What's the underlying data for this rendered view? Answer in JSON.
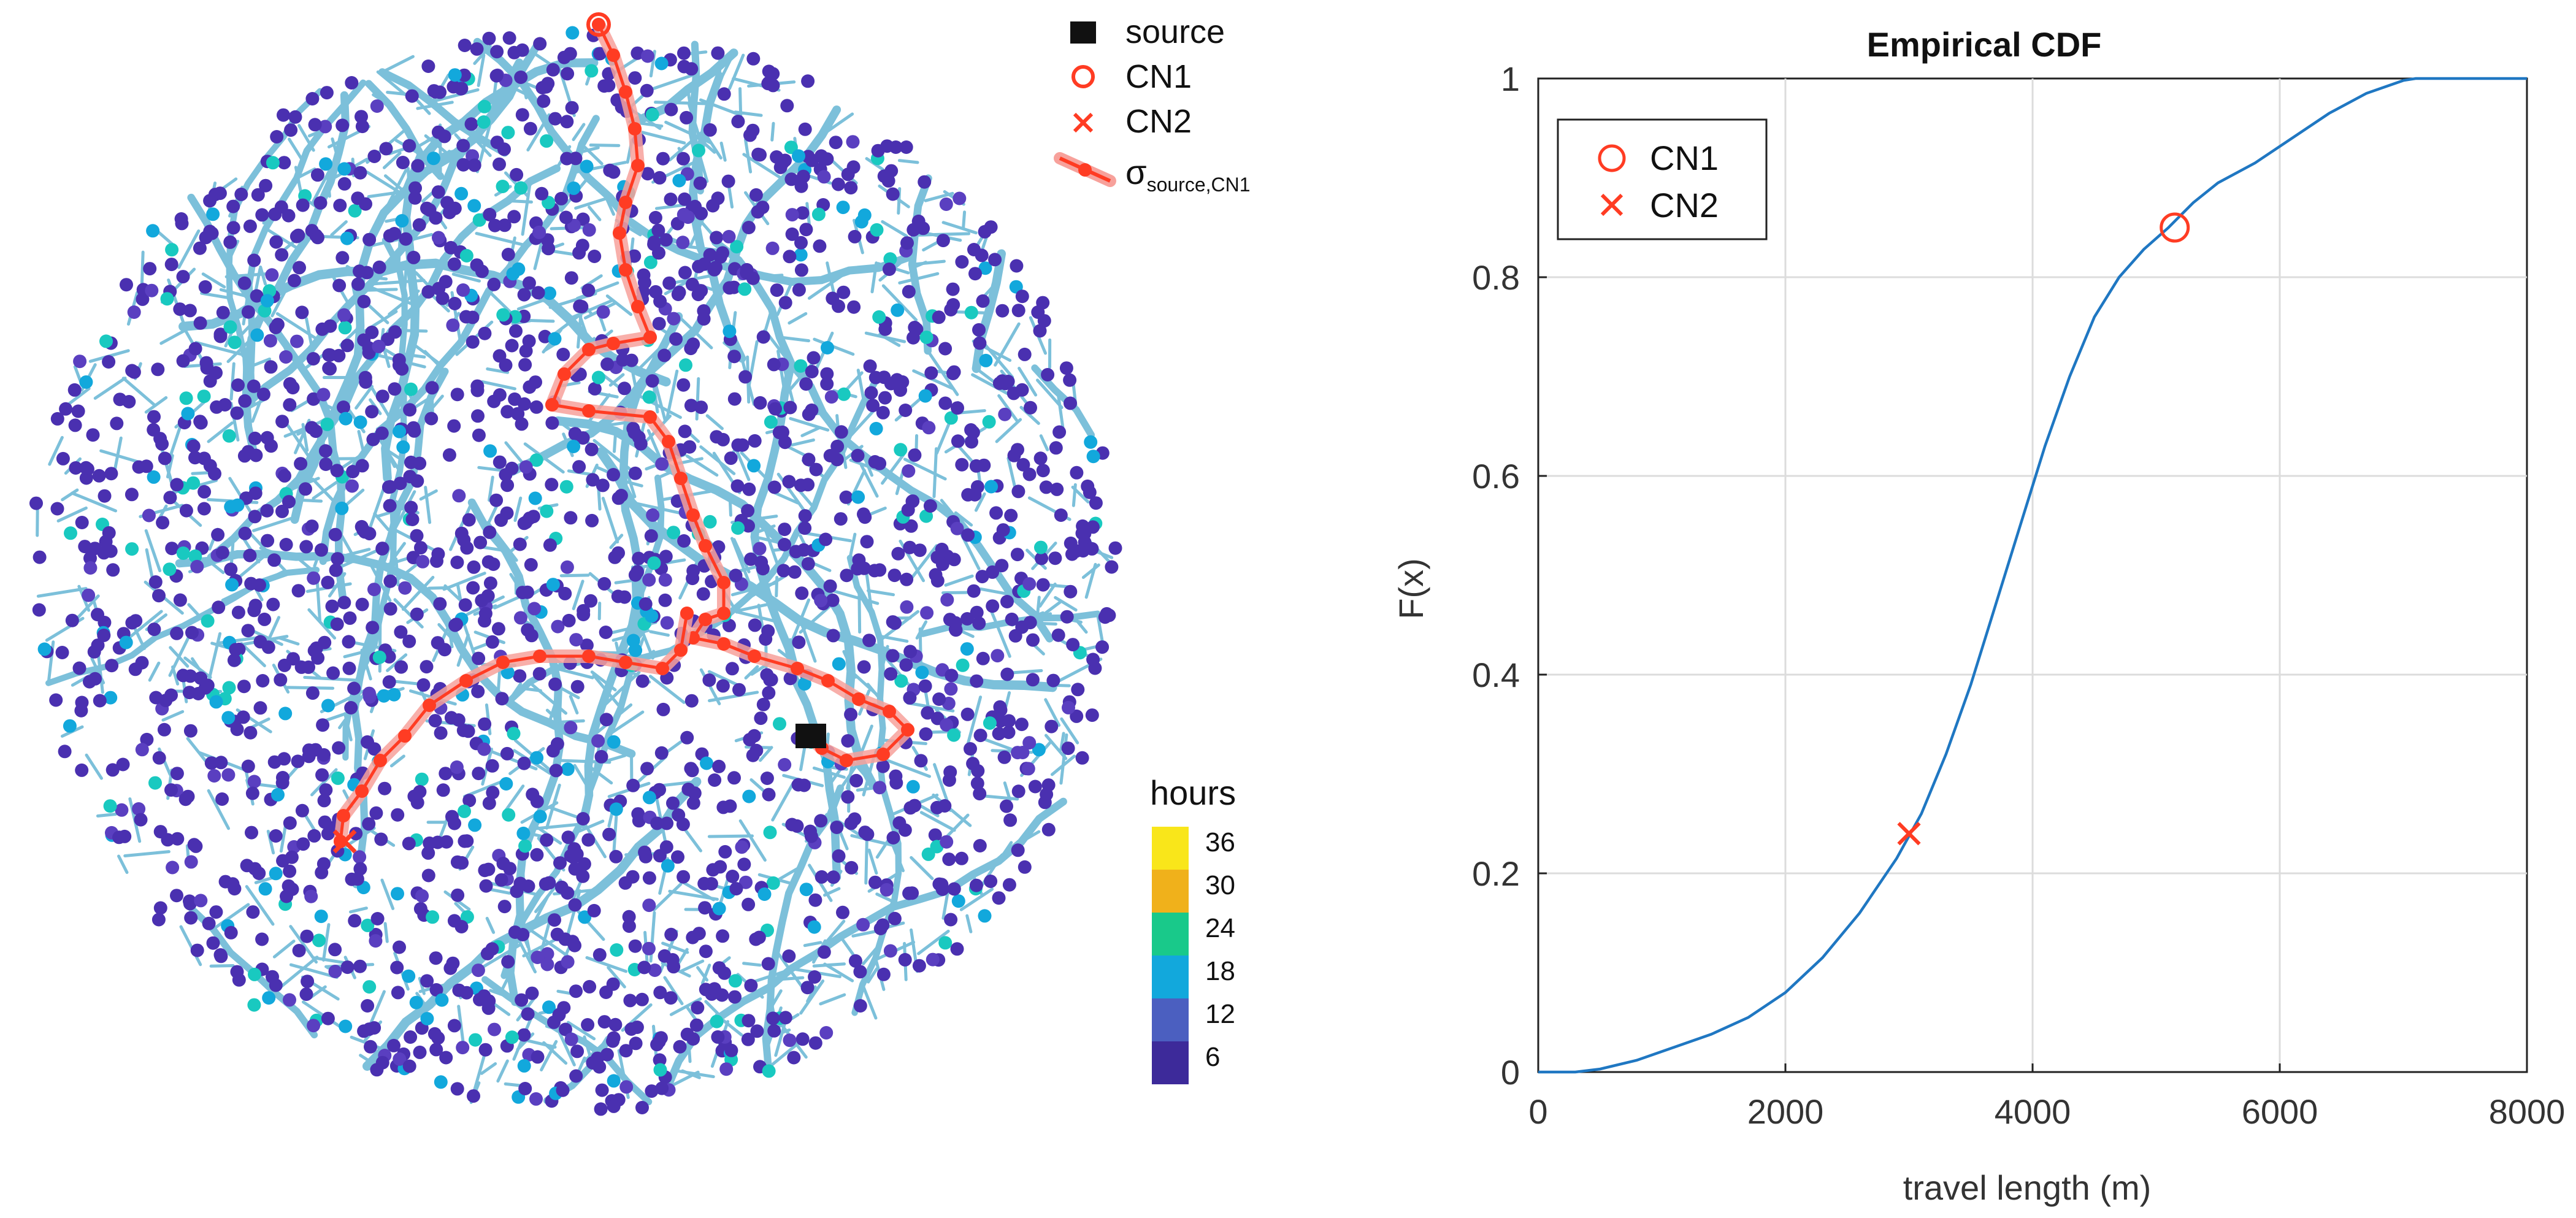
{
  "network_map": {
    "legend": {
      "source": "source",
      "cn1": "CN1",
      "cn2": "CN2",
      "path_symbol": "σ",
      "path_subscript": "source,CN1"
    },
    "colorbar": {
      "title": "hours",
      "ticks": [
        "36",
        "30",
        "24",
        "18",
        "12",
        "6"
      ],
      "colors": [
        "#f9e61a",
        "#f0b11b",
        "#19c98a",
        "#12a8dc",
        "#4b5fc0",
        "#3d2a9a"
      ]
    },
    "colors": {
      "pipe": "#7cc0da",
      "node": "#4a30b0",
      "path": "#ff3c23",
      "path_halo": "#f7a19b",
      "source": "#111111",
      "marker": "#ff3c23"
    }
  },
  "chart_data": {
    "type": "line",
    "title": "Empirical CDF",
    "xlabel": "travel length (m)",
    "ylabel": "F(x)",
    "xlim": [
      0,
      8000
    ],
    "ylim": [
      0,
      1
    ],
    "xticks": [
      0,
      2000,
      4000,
      6000,
      8000
    ],
    "yticks": [
      0,
      0.2,
      0.4,
      0.6,
      0.8,
      1
    ],
    "xtick_labels": [
      "0",
      "2000",
      "4000",
      "6000",
      "8000"
    ],
    "ytick_labels": [
      "0",
      "0.2",
      "0.4",
      "0.6",
      "0.8",
      "1"
    ],
    "grid": true,
    "legend_position": "top-left",
    "series": [
      {
        "name": "ECDF",
        "color": "#1f77c2",
        "x": [
          0,
          300,
          500,
          800,
          1100,
          1400,
          1700,
          2000,
          2300,
          2600,
          2900,
          3100,
          3300,
          3500,
          3700,
          3900,
          4100,
          4300,
          4500,
          4700,
          4900,
          5100,
          5300,
          5500,
          5800,
          6100,
          6400,
          6700,
          7000,
          7100
        ],
        "y": [
          0,
          0,
          0.003,
          0.012,
          0.025,
          0.038,
          0.055,
          0.08,
          0.115,
          0.16,
          0.215,
          0.26,
          0.32,
          0.39,
          0.47,
          0.55,
          0.63,
          0.7,
          0.76,
          0.8,
          0.828,
          0.85,
          0.875,
          0.895,
          0.915,
          0.94,
          0.965,
          0.985,
          0.998,
          1
        ]
      }
    ],
    "markers": [
      {
        "name": "CN1",
        "symbol": "circle",
        "x": 5150,
        "y": 0.85
      },
      {
        "name": "CN2",
        "symbol": "x",
        "x": 3000,
        "y": 0.24
      }
    ],
    "legend": [
      "CN1",
      "CN2"
    ]
  }
}
